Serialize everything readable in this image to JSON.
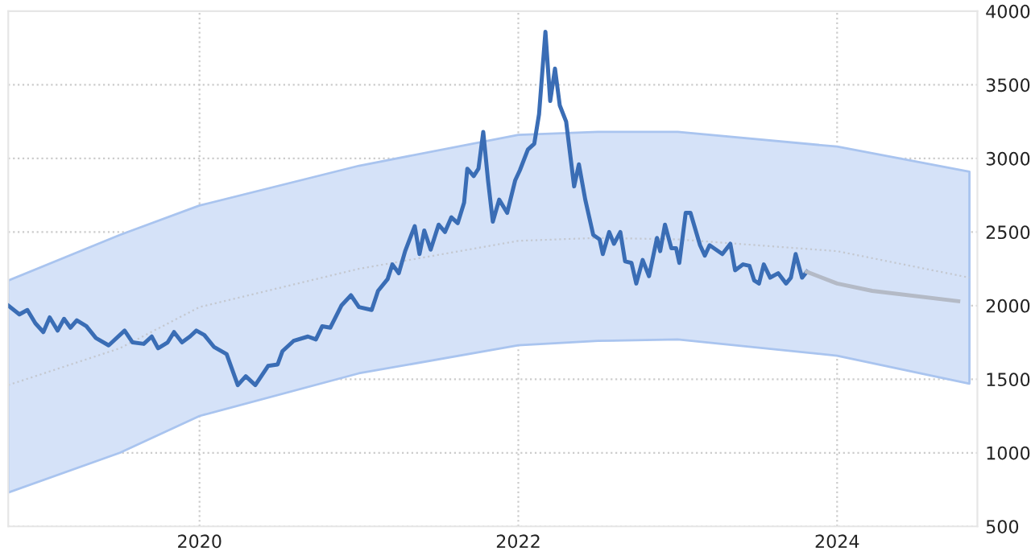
{
  "chart_data": {
    "type": "line",
    "series": [
      {
        "color": "#c4c8d0",
        "line_style": "dotted",
        "x": [
          2018.8,
          2019.5,
          2020,
          2021,
          2022,
          2022.5,
          2023,
          2024,
          2024.83
        ],
        "values": [
          1460,
          1710,
          1990,
          2250,
          2440,
          2460,
          2450,
          2370,
          2190
        ],
        "lower": [
          730,
          1000,
          1250,
          1540,
          1730,
          1760,
          1770,
          1660,
          1470
        ],
        "upper": [
          2170,
          2480,
          2680,
          2950,
          3160,
          3180,
          3180,
          3080,
          2910
        ]
      },
      {
        "color": "#3a6db5",
        "line_style": "solid",
        "x": [
          2018.8,
          2018.87,
          2018.92,
          2018.97,
          2019.02,
          2019.06,
          2019.11,
          2019.15,
          2019.19,
          2019.23,
          2019.29,
          2019.35,
          2019.43,
          2019.53,
          2019.58,
          2019.65,
          2019.7,
          2019.74,
          2019.8,
          2019.84,
          2019.89,
          2019.94,
          2019.98,
          2020.03,
          2020.09,
          2020.17,
          2020.24,
          2020.29,
          2020.35,
          2020.43,
          2020.49,
          2020.52,
          2020.59,
          2020.68,
          2020.73,
          2020.77,
          2020.82,
          2020.89,
          2020.95,
          2021.0,
          2021.08,
          2021.12,
          2021.18,
          2021.21,
          2021.25,
          2021.29,
          2021.35,
          2021.38,
          2021.41,
          2021.45,
          2021.5,
          2021.54,
          2021.58,
          2021.62,
          2021.66,
          2021.68,
          2021.72,
          2021.75,
          2021.78,
          2021.81,
          2021.84,
          2021.88,
          2021.93,
          2021.98,
          2022.01,
          2022.06,
          2022.1,
          2022.13,
          2022.17,
          2022.2,
          2022.23,
          2022.26,
          2022.3,
          2022.35,
          2022.38,
          2022.42,
          2022.47,
          2022.51,
          2022.53,
          2022.57,
          2022.6,
          2022.64,
          2022.67,
          2022.71,
          2022.74,
          2022.78,
          2022.82,
          2022.87,
          2022.89,
          2022.92,
          2022.96,
          2022.99,
          2023.01,
          2023.05,
          2023.08,
          2023.14,
          2023.17,
          2023.2,
          2023.28,
          2023.33,
          2023.36,
          2023.41,
          2023.45,
          2023.48,
          2023.51,
          2023.54,
          2023.58,
          2023.63,
          2023.68,
          2023.71,
          2023.74,
          2023.78,
          2023.81
        ],
        "values": [
          2000,
          1940,
          1970,
          1880,
          1820,
          1920,
          1830,
          1910,
          1850,
          1900,
          1860,
          1780,
          1730,
          1830,
          1750,
          1740,
          1790,
          1710,
          1750,
          1820,
          1750,
          1790,
          1830,
          1800,
          1720,
          1670,
          1460,
          1520,
          1460,
          1590,
          1600,
          1690,
          1760,
          1790,
          1770,
          1860,
          1850,
          2000,
          2070,
          1990,
          1970,
          2100,
          2180,
          2280,
          2220,
          2370,
          2540,
          2350,
          2510,
          2380,
          2550,
          2500,
          2600,
          2560,
          2700,
          2930,
          2880,
          2930,
          3180,
          2850,
          2570,
          2720,
          2630,
          2850,
          2920,
          3060,
          3100,
          3300,
          3860,
          3390,
          3610,
          3360,
          3250,
          2810,
          2960,
          2720,
          2480,
          2450,
          2350,
          2500,
          2420,
          2500,
          2300,
          2290,
          2150,
          2310,
          2200,
          2460,
          2370,
          2550,
          2390,
          2390,
          2290,
          2630,
          2630,
          2410,
          2340,
          2410,
          2350,
          2420,
          2240,
          2280,
          2270,
          2170,
          2150,
          2280,
          2190,
          2220,
          2150,
          2190,
          2350,
          2190,
          2230
        ]
      },
      {
        "color": "#b4bac6",
        "line_style": "solid",
        "x": [
          2023.81,
          2024.0,
          2024.22,
          2024.76
        ],
        "values": [
          2230,
          2150,
          2100,
          2030
        ]
      }
    ],
    "xlim": [
      2018.8,
      2024.88
    ],
    "xticks": [
      2020,
      2022,
      2024
    ],
    "ylim": [
      500,
      4000
    ],
    "yticks": [
      500,
      1000,
      1500,
      2000,
      2500,
      3000,
      3500,
      4000
    ],
    "grid": true,
    "legend": false,
    "marker": "none"
  }
}
